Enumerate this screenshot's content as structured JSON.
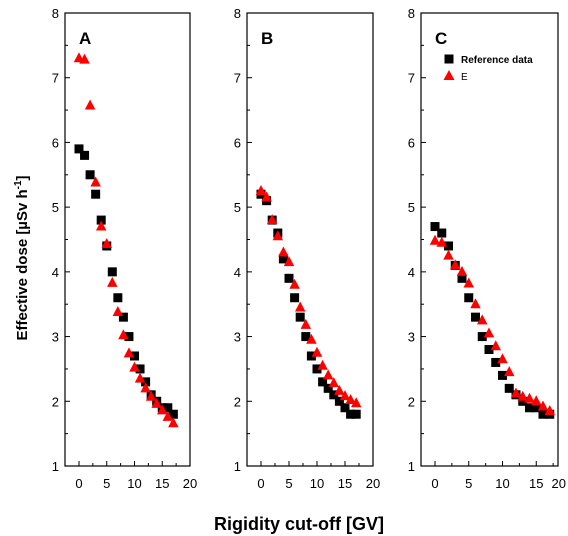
{
  "colors": {
    "reference": "#000000",
    "e": "#ff0000",
    "axis": "#000000"
  },
  "chart_data": {
    "type": "scatter",
    "xlabel": "Rigidity cut-off [GV]",
    "ylabel_main": "Effective dose  [",
    "ylabel_unit": "µSv h",
    "ylabel_exp": "-1",
    "ylabel_close": "]",
    "xlim": [
      -2,
      20
    ],
    "ylim": [
      1,
      8
    ],
    "xticks": [
      "0",
      "5",
      "10",
      "15",
      "20"
    ],
    "yticks": [
      "1",
      "2",
      "3",
      "4",
      "5",
      "6",
      "7",
      "8"
    ],
    "legend": {
      "position": "top-right of panel C",
      "entries": [
        "Reference data",
        "E"
      ]
    },
    "panels": [
      {
        "label": "A",
        "series": [
          {
            "name": "Reference data",
            "marker": "square",
            "x": [
              0,
              1,
              2,
              3,
              4,
              5,
              6,
              7,
              8,
              9,
              10,
              11,
              12,
              13,
              14,
              15,
              16,
              17
            ],
            "y": [
              5.9,
              5.8,
              5.5,
              5.2,
              4.8,
              4.4,
              4.0,
              3.6,
              3.3,
              3.0,
              2.7,
              2.5,
              2.3,
              2.1,
              2.0,
              1.9,
              1.9,
              1.8
            ]
          },
          {
            "name": "E",
            "marker": "triangle",
            "x": [
              0,
              1,
              2,
              3,
              4,
              5,
              6,
              7,
              8,
              9,
              10,
              11,
              12,
              13,
              14,
              15,
              16,
              17
            ],
            "y": [
              7.3,
              7.28,
              6.57,
              5.38,
              4.7,
              4.43,
              3.83,
              3.38,
              3.02,
              2.74,
              2.52,
              2.35,
              2.2,
              2.07,
              1.96,
              1.86,
              1.76,
              1.66
            ]
          }
        ]
      },
      {
        "label": "B",
        "series": [
          {
            "name": "Reference data",
            "marker": "square",
            "x": [
              0,
              1,
              2,
              3,
              4,
              5,
              6,
              7,
              8,
              9,
              10,
              11,
              12,
              13,
              14,
              15,
              16,
              17
            ],
            "y": [
              5.2,
              5.1,
              4.8,
              4.6,
              4.2,
              3.9,
              3.6,
              3.3,
              3.0,
              2.7,
              2.5,
              2.3,
              2.2,
              2.1,
              2.0,
              1.9,
              1.8,
              1.8
            ]
          },
          {
            "name": "E",
            "marker": "triangle",
            "x": [
              0,
              1,
              2,
              3,
              4,
              5,
              6,
              7,
              8,
              9,
              10,
              11,
              12,
              13,
              14,
              15,
              16,
              17
            ],
            "y": [
              5.25,
              5.15,
              4.8,
              4.55,
              4.3,
              4.15,
              3.8,
              3.45,
              3.18,
              2.95,
              2.75,
              2.55,
              2.4,
              2.28,
              2.16,
              2.08,
              2.02,
              1.97
            ]
          }
        ]
      },
      {
        "label": "C",
        "series": [
          {
            "name": "Reference data",
            "marker": "square",
            "x": [
              0,
              1,
              2,
              3,
              4,
              5,
              6,
              7,
              8,
              9,
              10,
              11,
              12,
              13,
              14,
              15,
              16,
              17
            ],
            "y": [
              4.7,
              4.6,
              4.4,
              4.1,
              3.9,
              3.6,
              3.3,
              3.0,
              2.8,
              2.6,
              2.4,
              2.2,
              2.1,
              2.0,
              1.9,
              1.9,
              1.8,
              1.8
            ]
          },
          {
            "name": "E",
            "marker": "triangle",
            "x": [
              0,
              1,
              2,
              3,
              4,
              5,
              6,
              7,
              8,
              9,
              10,
              11,
              12,
              13,
              14,
              15,
              16,
              17
            ],
            "y": [
              4.48,
              4.45,
              4.25,
              4.1,
              4.0,
              3.82,
              3.5,
              3.25,
              3.05,
              2.85,
              2.65,
              2.45,
              2.12,
              2.07,
              2.04,
              2.0,
              1.92,
              1.85
            ]
          }
        ]
      }
    ]
  }
}
